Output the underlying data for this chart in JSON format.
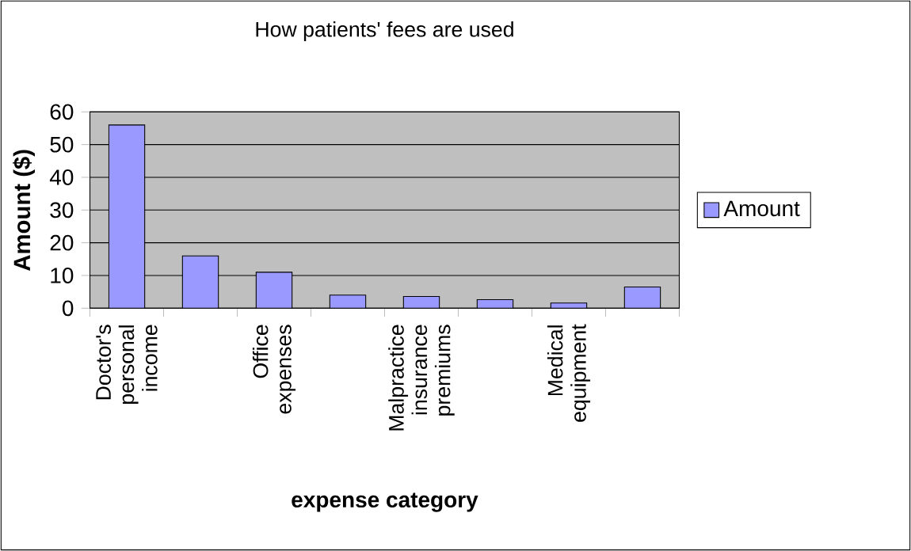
{
  "chart_data": {
    "type": "bar",
    "title": "How patients' fees are used",
    "xlabel": "expense category",
    "ylabel": "Amount ($)",
    "categories": [
      "Doctor's personal income",
      null,
      "Office expenses",
      null,
      "Malpractice insurance premiums",
      null,
      "Medical equipment",
      null
    ],
    "series": [
      {
        "name": "Amount",
        "color": "#9999ff",
        "values": [
          56,
          16,
          11,
          4,
          3.6,
          2.6,
          1.6,
          6.5
        ]
      }
    ],
    "ylim": [
      0,
      60
    ],
    "yticks": [
      0,
      10,
      20,
      30,
      40,
      50,
      60
    ],
    "grid": "y",
    "legend": "right"
  }
}
